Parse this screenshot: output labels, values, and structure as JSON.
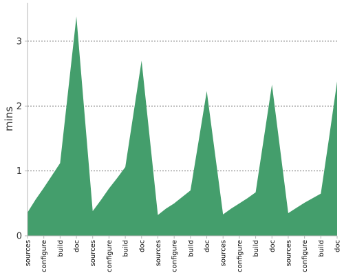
{
  "chart_data": {
    "type": "area",
    "title": "",
    "xlabel": "",
    "ylabel": "mins",
    "ylim": [
      0,
      3.55
    ],
    "yticks": [
      0,
      1,
      2,
      3
    ],
    "grid": "horizontal dashed",
    "colors": {
      "area": "#449e6c",
      "grid": "#777777",
      "axis": "#b4b4b4"
    },
    "categories": [
      "sources",
      "configure",
      "build",
      "doc",
      "sources",
      "configure",
      "build",
      "doc",
      "sources",
      "configure",
      "build",
      "doc",
      "sources",
      "configure",
      "build",
      "doc",
      "sources",
      "configure",
      "build",
      "doc"
    ],
    "x": [
      0,
      0.5,
      1,
      1.5,
      2,
      2.5,
      3,
      3.5,
      4,
      4.5,
      5,
      5.5,
      6,
      6.5,
      7,
      7.5,
      8,
      8.5,
      9,
      9.5,
      10,
      10.5,
      11,
      11.5,
      12,
      12.5,
      13,
      13.5,
      14,
      14.5,
      15,
      15.5,
      16,
      16.5,
      17,
      17.5,
      18,
      18.5,
      19
    ],
    "series": [
      {
        "name": "",
        "values": [
          0.36,
          0.56,
          0.74,
          0.93,
          1.12,
          2.25,
          3.38,
          1.88,
          0.38,
          0.55,
          0.73,
          0.89,
          1.06,
          1.88,
          2.7,
          1.51,
          0.32,
          0.42,
          0.5,
          0.6,
          0.7,
          1.46,
          2.23,
          1.28,
          0.33,
          0.42,
          0.5,
          0.58,
          0.67,
          1.5,
          2.33,
          1.34,
          0.35,
          0.43,
          0.51,
          0.58,
          0.65,
          1.5,
          2.38
        ]
      }
    ]
  }
}
